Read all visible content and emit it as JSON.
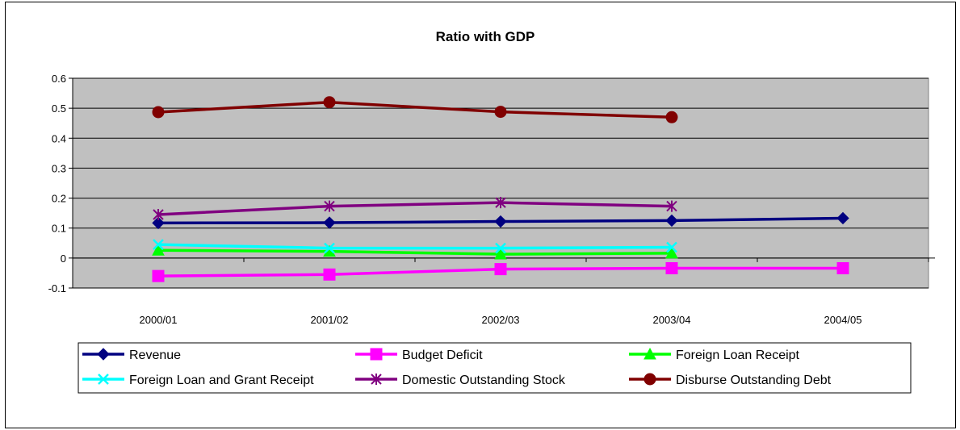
{
  "chart_data": {
    "type": "line",
    "title": "Ratio with GDP",
    "xlabel": "",
    "ylabel": "",
    "categories": [
      "2000/01",
      "2001/02",
      "2002/03",
      "2003/04",
      "2004/05"
    ],
    "ylim": [
      -0.1,
      0.6
    ],
    "yticks": [
      "0.6",
      "0.5",
      "0.4",
      "0.3",
      "0.2",
      "0.1",
      "0",
      "-0.1"
    ],
    "ytick_values": [
      0.6,
      0.5,
      0.4,
      0.3,
      0.2,
      0.1,
      0,
      -0.1
    ],
    "grid": true,
    "plot_background": "#c0c0c0",
    "legend_position": "bottom",
    "series": [
      {
        "name": "Revenue",
        "color": "#000080",
        "marker": "diamond",
        "values": [
          0.117,
          0.118,
          0.122,
          0.125,
          0.133
        ]
      },
      {
        "name": "Budget Deficit",
        "color": "#ff00ff",
        "marker": "square",
        "values": [
          -0.06,
          -0.055,
          -0.037,
          -0.034,
          -0.034
        ]
      },
      {
        "name": "Foreign Loan Receipt",
        "color": "#00ff00",
        "marker": "triangle",
        "values": [
          0.026,
          0.022,
          0.013,
          0.016,
          null
        ]
      },
      {
        "name": "Foreign Loan and Grant Receipt",
        "color": "#00ffff",
        "marker": "x",
        "values": [
          0.045,
          0.033,
          0.033,
          0.036,
          null
        ]
      },
      {
        "name": "Domestic Outstanding Stock",
        "color": "#800080",
        "marker": "star",
        "values": [
          0.145,
          0.173,
          0.185,
          0.173,
          null
        ]
      },
      {
        "name": "Disburse Outstanding Debt",
        "color": "#800000",
        "marker": "circle",
        "values": [
          0.487,
          0.52,
          0.488,
          0.47,
          null
        ]
      }
    ]
  }
}
